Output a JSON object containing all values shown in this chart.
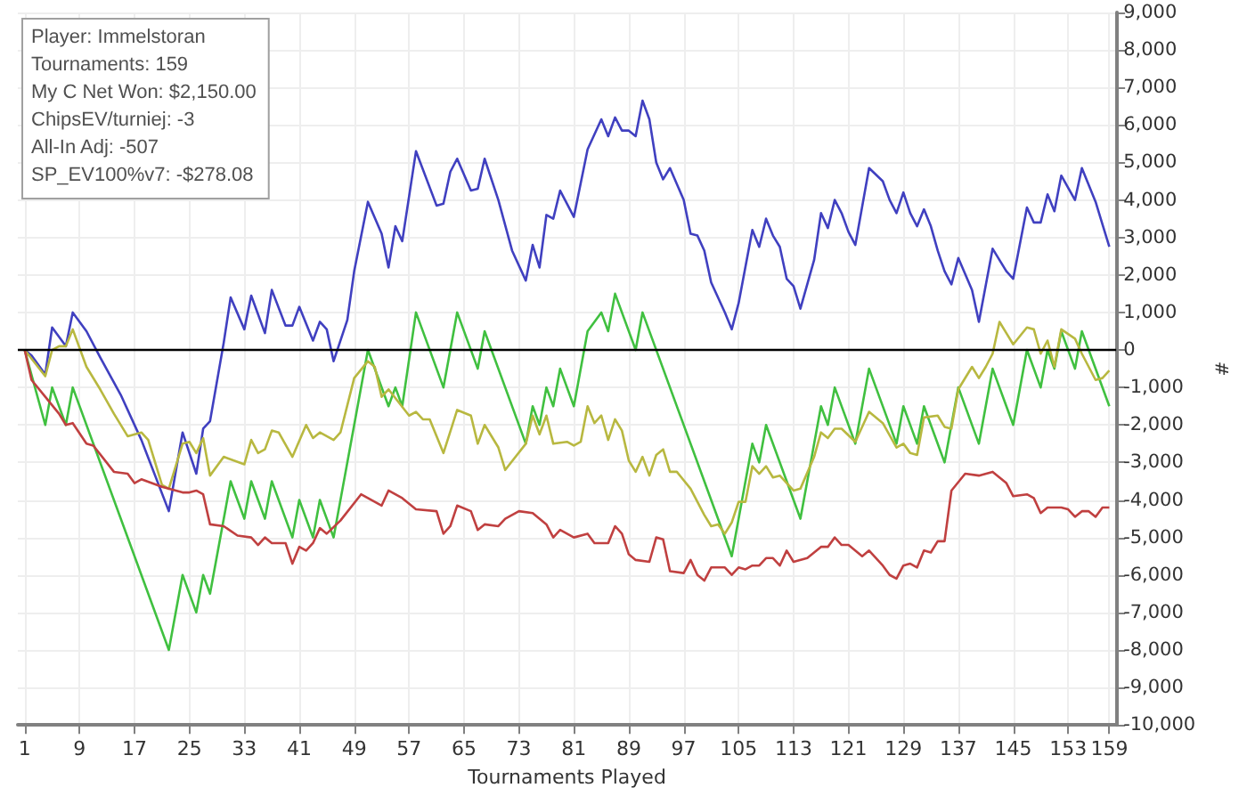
{
  "chart_data": {
    "type": "line",
    "xlabel": "Tournaments Played",
    "ylabel": "#",
    "annotations": [
      "Player: Immelstoran",
      "Tournaments: 159",
      "My C Net Won: $2,150.00",
      "ChipsEV/turniej: -3",
      "All-In Adj: -507",
      "SP_EV100%v7: -$278.08"
    ],
    "xlim": [
      0,
      160
    ],
    "xticks": [
      1,
      9,
      17,
      25,
      33,
      41,
      49,
      57,
      65,
      73,
      81,
      89,
      97,
      105,
      113,
      121,
      129,
      137,
      145,
      153,
      159
    ],
    "ylim": [
      -10000,
      9000
    ],
    "yticks": [
      {
        "value": -10000,
        "label": "-10,000"
      },
      {
        "value": -9000,
        "label": "-9,000"
      },
      {
        "value": -8000,
        "label": "-8,000"
      },
      {
        "value": -7000,
        "label": "-7,000"
      },
      {
        "value": -6000,
        "label": "-6,000"
      },
      {
        "value": -5000,
        "label": "-5,000"
      },
      {
        "value": -4000,
        "label": "-4,000"
      },
      {
        "value": -3000,
        "label": "-3,000"
      },
      {
        "value": -2000,
        "label": "-2,000"
      },
      {
        "value": -1000,
        "label": "-1,000"
      },
      0,
      {
        "value": 1000,
        "label": "1,000"
      },
      {
        "value": 2000,
        "label": "2,000"
      },
      {
        "value": 3000,
        "label": "3,000"
      },
      {
        "value": 4000,
        "label": "4,000"
      },
      {
        "value": 5000,
        "label": "5,000"
      },
      {
        "value": 6000,
        "label": "6,000"
      },
      {
        "value": 7000,
        "label": "7,000"
      },
      {
        "value": 8000,
        "label": "8,000"
      },
      {
        "value": 9000,
        "label": "9,000"
      }
    ],
    "grid": true,
    "marker": "none",
    "line_style": "solid",
    "ref_lines": [
      {
        "axis": "y",
        "value": 0,
        "color": "#000000"
      }
    ],
    "series": [
      {
        "color": "#4040c0",
        "x": [
          1,
          2,
          4,
          5,
          7,
          8,
          10,
          12,
          15,
          18,
          22,
          24,
          26,
          27,
          28,
          30,
          31,
          33,
          34,
          36,
          37,
          39,
          40,
          41,
          43,
          44,
          45,
          46,
          48,
          49,
          51,
          53,
          54,
          55,
          56,
          58,
          61,
          62,
          63,
          64,
          66,
          67,
          68,
          70,
          72,
          74,
          75,
          76,
          77,
          78,
          79,
          81,
          83,
          85,
          86,
          87,
          88,
          89,
          90,
          91,
          92,
          93,
          94,
          95,
          97,
          98,
          99,
          100,
          101,
          103,
          104,
          105,
          107,
          108,
          109,
          110,
          111,
          112,
          113,
          114,
          116,
          117,
          118,
          119,
          120,
          121,
          122,
          124,
          126,
          127,
          128,
          129,
          130,
          131,
          132,
          133,
          134,
          135,
          136,
          137,
          139,
          140,
          142,
          144,
          145,
          147,
          148,
          149,
          150,
          151,
          152,
          154,
          155,
          157,
          159
        ],
        "values": [
          0,
          -150,
          -650,
          600,
          100,
          1000,
          500,
          -200,
          -1200,
          -2400,
          -4300,
          -2200,
          -3300,
          -2100,
          -1900,
          200,
          1400,
          550,
          1450,
          450,
          1600,
          650,
          650,
          1150,
          250,
          750,
          550,
          -300,
          800,
          2100,
          3950,
          3100,
          2200,
          3300,
          2900,
          5300,
          3850,
          3900,
          4750,
          5100,
          4250,
          4300,
          5100,
          4000,
          2650,
          1850,
          2800,
          2200,
          3600,
          3500,
          4250,
          3550,
          5350,
          6150,
          5700,
          6200,
          5850,
          5850,
          5700,
          6650,
          6150,
          5000,
          4550,
          4850,
          4000,
          3100,
          3050,
          2650,
          1800,
          1000,
          550,
          1250,
          3200,
          2750,
          3500,
          3050,
          2750,
          1900,
          1700,
          1100,
          2400,
          3650,
          3250,
          4000,
          3650,
          3150,
          2800,
          4850,
          4500,
          4000,
          3650,
          4200,
          3650,
          3300,
          3750,
          3300,
          2650,
          2100,
          1750,
          2450,
          1600,
          750,
          2700,
          2100,
          1900,
          3800,
          3400,
          3400,
          4150,
          3700,
          4650,
          4000,
          4850,
          3950,
          2750
        ]
      },
      {
        "color": "#40c040",
        "x": [
          1,
          4,
          5,
          7,
          8,
          22,
          24,
          26,
          27,
          28,
          31,
          33,
          34,
          36,
          37,
          40,
          41,
          43,
          44,
          46,
          51,
          54,
          55,
          56,
          58,
          62,
          64,
          67,
          68,
          74,
          75,
          76,
          77,
          78,
          79,
          81,
          83,
          85,
          86,
          87,
          90,
          91,
          104,
          107,
          108,
          109,
          114,
          117,
          118,
          119,
          122,
          124,
          128,
          129,
          131,
          132,
          135,
          137,
          140,
          142,
          145,
          147,
          149,
          150,
          151,
          152,
          154,
          155,
          159
        ],
        "values": [
          0,
          -2000,
          -1000,
          -2000,
          -1000,
          -8000,
          -6000,
          -7000,
          -6000,
          -6500,
          -3500,
          -4500,
          -3500,
          -4500,
          -3500,
          -5000,
          -4000,
          -5000,
          -4000,
          -5000,
          0,
          -1500,
          -1000,
          -1500,
          1000,
          -1000,
          1000,
          -500,
          500,
          -2500,
          -1500,
          -2000,
          -1000,
          -1500,
          -500,
          -1500,
          500,
          1000,
          500,
          1500,
          0,
          1000,
          -5500,
          -2500,
          -3000,
          -2000,
          -4500,
          -1500,
          -2000,
          -1000,
          -2500,
          -500,
          -2500,
          -1500,
          -2500,
          -1500,
          -3000,
          -1000,
          -2500,
          -500,
          -2000,
          0,
          -1000,
          0,
          -500,
          500,
          -500,
          500,
          -1500
        ]
      },
      {
        "color": "#b8b840",
        "x": [
          1,
          4,
          5,
          6,
          7,
          8,
          10,
          12,
          14,
          16,
          18,
          19,
          21,
          22,
          24,
          25,
          26,
          27,
          28,
          30,
          33,
          34,
          35,
          36,
          37,
          38,
          40,
          42,
          43,
          44,
          46,
          47,
          49,
          51,
          52,
          53,
          54,
          57,
          58,
          59,
          60,
          62,
          64,
          66,
          67,
          68,
          70,
          71,
          74,
          75,
          76,
          77,
          78,
          80,
          81,
          82,
          83,
          84,
          85,
          86,
          87,
          88,
          89,
          90,
          91,
          92,
          93,
          94,
          95,
          96,
          98,
          100,
          101,
          102,
          103,
          104,
          105,
          106,
          107,
          108,
          109,
          110,
          111,
          113,
          114,
          116,
          117,
          118,
          119,
          120,
          122,
          124,
          126,
          128,
          129,
          130,
          131,
          132,
          134,
          135,
          136,
          137,
          139,
          140,
          141,
          142,
          143,
          144,
          145,
          147,
          148,
          149,
          150,
          151,
          152,
          154,
          155,
          157,
          158,
          159
        ],
        "values": [
          0,
          -700,
          0,
          100,
          100,
          550,
          -450,
          -1050,
          -1700,
          -2300,
          -2200,
          -2400,
          -3600,
          -3700,
          -2500,
          -2450,
          -2750,
          -2350,
          -3350,
          -2850,
          -3050,
          -2400,
          -2750,
          -2650,
          -2150,
          -2200,
          -2850,
          -2000,
          -2350,
          -2200,
          -2400,
          -2200,
          -750,
          -300,
          -450,
          -1250,
          -1050,
          -1750,
          -1650,
          -1850,
          -1850,
          -2750,
          -1600,
          -1750,
          -2500,
          -2000,
          -2600,
          -3200,
          -2500,
          -1750,
          -2250,
          -1750,
          -2500,
          -2450,
          -2550,
          -2450,
          -1500,
          -1950,
          -1750,
          -2400,
          -1850,
          -2150,
          -2950,
          -3250,
          -2850,
          -3350,
          -2800,
          -2650,
          -3250,
          -3250,
          -3700,
          -4400,
          -4700,
          -4650,
          -4900,
          -4600,
          -4050,
          -4050,
          -3100,
          -3300,
          -3100,
          -3400,
          -3350,
          -3750,
          -3700,
          -2850,
          -2200,
          -2350,
          -2100,
          -2100,
          -2450,
          -1650,
          -1950,
          -2600,
          -2500,
          -2750,
          -2800,
          -1800,
          -1750,
          -2050,
          -2100,
          -1050,
          -450,
          -750,
          -450,
          -100,
          750,
          450,
          150,
          600,
          550,
          -100,
          250,
          -450,
          550,
          300,
          -100,
          -800,
          -750,
          -550
        ]
      },
      {
        "color": "#c04040",
        "x": [
          1,
          2,
          4,
          6,
          7,
          8,
          10,
          11,
          14,
          16,
          17,
          18,
          21,
          24,
          25,
          26,
          27,
          28,
          30,
          32,
          34,
          35,
          36,
          37,
          39,
          40,
          41,
          42,
          43,
          44,
          45,
          47,
          50,
          53,
          54,
          56,
          58,
          61,
          62,
          63,
          64,
          66,
          67,
          68,
          70,
          71,
          73,
          75,
          77,
          78,
          79,
          81,
          83,
          84,
          86,
          87,
          88,
          89,
          90,
          92,
          93,
          94,
          95,
          97,
          98,
          99,
          100,
          101,
          103,
          104,
          105,
          106,
          107,
          108,
          109,
          110,
          111,
          112,
          113,
          115,
          117,
          118,
          119,
          120,
          121,
          123,
          124,
          126,
          127,
          128,
          129,
          130,
          131,
          132,
          133,
          134,
          135,
          136,
          138,
          140,
          142,
          144,
          145,
          147,
          148,
          149,
          150,
          152,
          153,
          154,
          155,
          156,
          157,
          158,
          159
        ],
        "values": [
          0,
          -800,
          -1250,
          -1700,
          -2000,
          -1950,
          -2500,
          -2550,
          -3250,
          -3300,
          -3550,
          -3450,
          -3650,
          -3800,
          -3800,
          -3750,
          -3850,
          -4650,
          -4700,
          -4950,
          -5000,
          -5200,
          -5000,
          -5150,
          -5150,
          -5700,
          -5250,
          -5350,
          -5150,
          -4750,
          -4900,
          -4550,
          -3850,
          -4150,
          -3750,
          -3950,
          -4250,
          -4300,
          -4900,
          -4700,
          -4150,
          -4300,
          -4800,
          -4650,
          -4700,
          -4500,
          -4300,
          -4350,
          -4650,
          -5000,
          -4800,
          -5000,
          -4900,
          -5150,
          -5150,
          -4700,
          -4900,
          -5450,
          -5600,
          -5650,
          -5000,
          -5050,
          -5900,
          -5950,
          -5600,
          -6000,
          -6150,
          -5800,
          -5800,
          -6000,
          -5800,
          -5850,
          -5750,
          -5750,
          -5550,
          -5550,
          -5750,
          -5350,
          -5650,
          -5550,
          -5250,
          -5250,
          -5000,
          -5200,
          -5200,
          -5500,
          -5350,
          -5750,
          -6000,
          -6100,
          -5750,
          -5700,
          -5800,
          -5350,
          -5400,
          -5100,
          -5100,
          -3750,
          -3300,
          -3350,
          -3250,
          -3550,
          -3900,
          -3850,
          -3950,
          -4350,
          -4200,
          -4200,
          -4250,
          -4450,
          -4300,
          -4300,
          -4450,
          -4200,
          -4200
        ]
      }
    ]
  }
}
